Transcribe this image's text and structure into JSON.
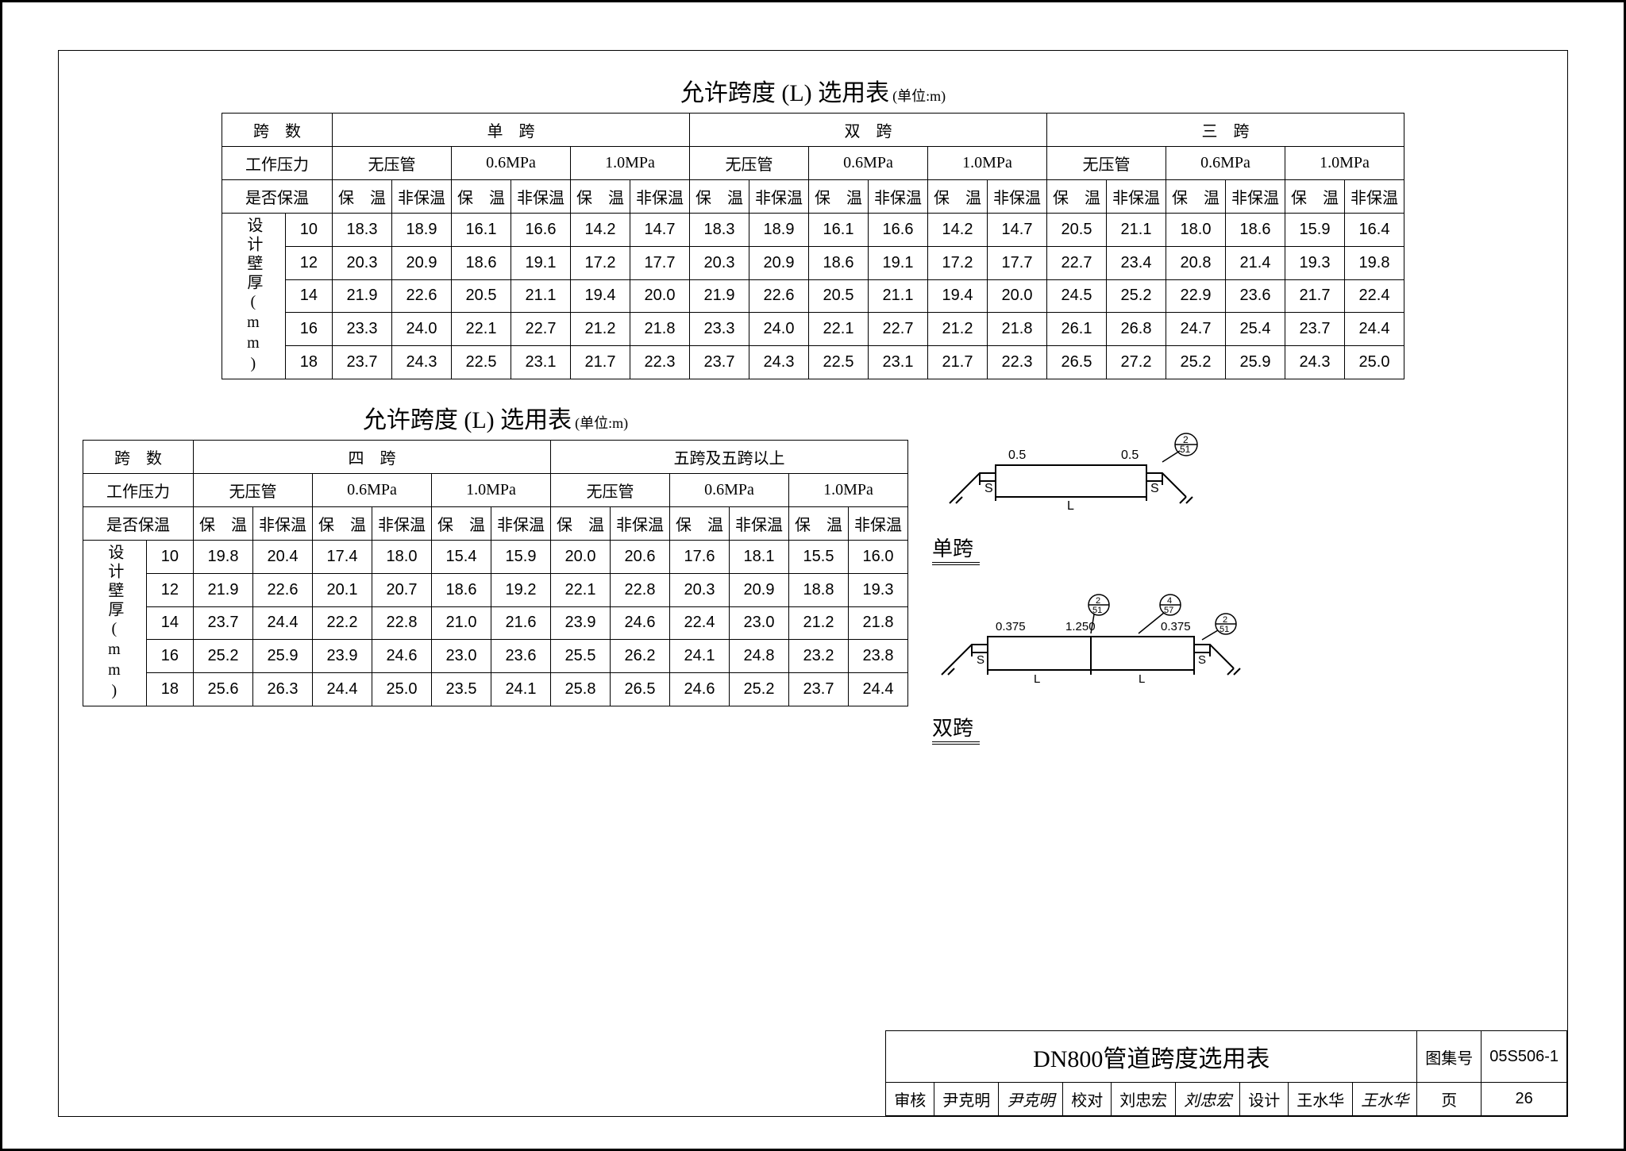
{
  "title_main": "允许跨度 (L) 选用表",
  "title_unit": "(单位:m)",
  "headers": {
    "span_count": "跨　数",
    "work_pressure": "工作压力",
    "insulated": "是否保温",
    "design_thickness": "设计壁厚(mm)",
    "no_pressure": "无压管",
    "p06": "0.6MPa",
    "p10": "1.0MPa",
    "ins_yes": "保　温",
    "ins_no": "非保温"
  },
  "span_names": {
    "s1": "单　跨",
    "s2": "双　跨",
    "s3": "三　跨",
    "s4": "四　跨",
    "s5": "五跨及五跨以上"
  },
  "thickness": [
    "10",
    "12",
    "14",
    "16",
    "18"
  ],
  "table1": {
    "groups": [
      "s1",
      "s2",
      "s3"
    ],
    "rows": [
      [
        "18.3",
        "18.9",
        "16.1",
        "16.6",
        "14.2",
        "14.7",
        "18.3",
        "18.9",
        "16.1",
        "16.6",
        "14.2",
        "14.7",
        "20.5",
        "21.1",
        "18.0",
        "18.6",
        "15.9",
        "16.4"
      ],
      [
        "20.3",
        "20.9",
        "18.6",
        "19.1",
        "17.2",
        "17.7",
        "20.3",
        "20.9",
        "18.6",
        "19.1",
        "17.2",
        "17.7",
        "22.7",
        "23.4",
        "20.8",
        "21.4",
        "19.3",
        "19.8"
      ],
      [
        "21.9",
        "22.6",
        "20.5",
        "21.1",
        "19.4",
        "20.0",
        "21.9",
        "22.6",
        "20.5",
        "21.1",
        "19.4",
        "20.0",
        "24.5",
        "25.2",
        "22.9",
        "23.6",
        "21.7",
        "22.4"
      ],
      [
        "23.3",
        "24.0",
        "22.1",
        "22.7",
        "21.2",
        "21.8",
        "23.3",
        "24.0",
        "22.1",
        "22.7",
        "21.2",
        "21.8",
        "26.1",
        "26.8",
        "24.7",
        "25.4",
        "23.7",
        "24.4"
      ],
      [
        "23.7",
        "24.3",
        "22.5",
        "23.1",
        "21.7",
        "22.3",
        "23.7",
        "24.3",
        "22.5",
        "23.1",
        "21.7",
        "22.3",
        "26.5",
        "27.2",
        "25.2",
        "25.9",
        "24.3",
        "25.0"
      ]
    ]
  },
  "table2": {
    "groups": [
      "s4",
      "s5"
    ],
    "rows": [
      [
        "19.8",
        "20.4",
        "17.4",
        "18.0",
        "15.4",
        "15.9",
        "20.0",
        "20.6",
        "17.6",
        "18.1",
        "15.5",
        "16.0"
      ],
      [
        "21.9",
        "22.6",
        "20.1",
        "20.7",
        "18.6",
        "19.2",
        "22.1",
        "22.8",
        "20.3",
        "20.9",
        "18.8",
        "19.3"
      ],
      [
        "23.7",
        "24.4",
        "22.2",
        "22.8",
        "21.0",
        "21.6",
        "23.9",
        "24.6",
        "22.4",
        "23.0",
        "21.2",
        "21.8"
      ],
      [
        "25.2",
        "25.9",
        "23.9",
        "24.6",
        "23.0",
        "23.6",
        "25.5",
        "26.2",
        "24.1",
        "24.8",
        "23.2",
        "23.8"
      ],
      [
        "25.6",
        "26.3",
        "24.4",
        "25.0",
        "23.5",
        "24.1",
        "25.8",
        "26.5",
        "24.6",
        "25.2",
        "23.7",
        "24.4"
      ]
    ]
  },
  "diagrams": {
    "single": {
      "label": "单跨",
      "dims": [
        "0.5",
        "0.5"
      ],
      "ref": "2/51",
      "L": "L",
      "S": "S"
    },
    "double": {
      "label": "双跨",
      "dims": [
        "0.375",
        "1.250",
        "0.375"
      ],
      "refs": [
        "2/51",
        "4/57",
        "2/51"
      ],
      "L": "L",
      "S": "S"
    }
  },
  "titleblock": {
    "main": "DN800管道跨度选用表",
    "album_lbl": "图集号",
    "album_no": "05S506-1",
    "page_lbl": "页",
    "page_no": "26",
    "review_lbl": "审核",
    "review_name": "尹克明",
    "check_lbl": "校对",
    "check_name": "刘忠宏",
    "design_lbl": "设计",
    "design_name": "王水华"
  },
  "colors": {
    "text": "#000000",
    "bg": "#ffffff",
    "border": "#000000"
  }
}
